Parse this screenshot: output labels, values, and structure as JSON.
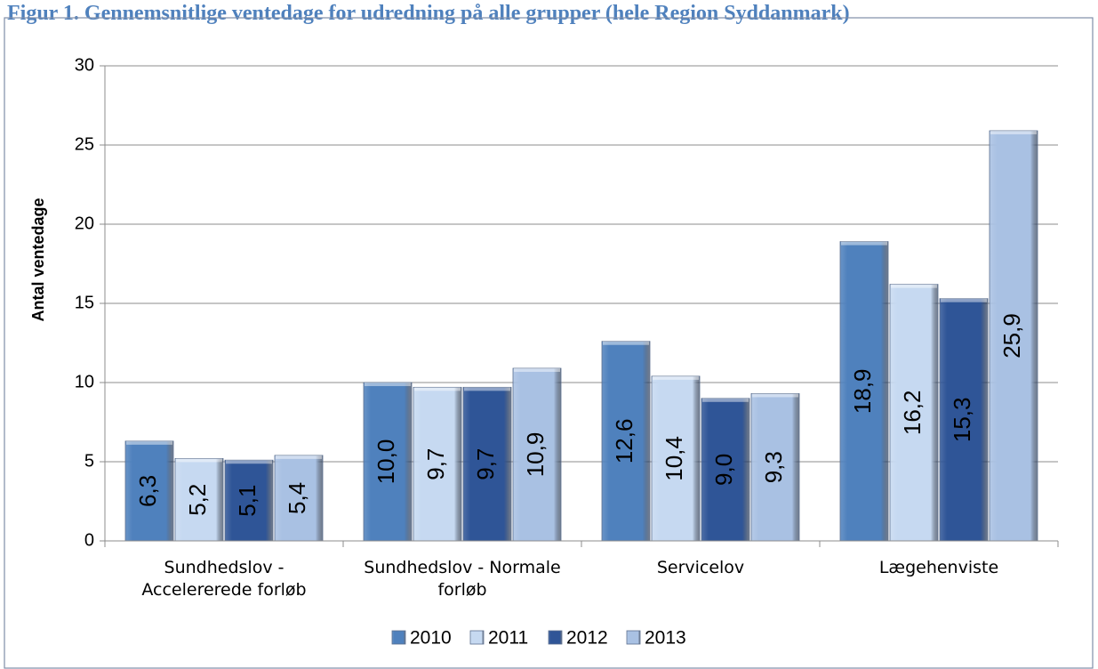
{
  "caption": "Figur 1. Gennemsnitlige ventedage for udredning på alle grupper (hele Region Syddanmark)",
  "chart_data": {
    "type": "bar",
    "title": "",
    "xlabel": "",
    "ylabel": "Antal ventedage",
    "ylim": [
      0,
      30
    ],
    "yticks": [
      "0",
      "5",
      "10",
      "15",
      "20",
      "25",
      "30"
    ],
    "grid": "horizontal",
    "legend_position": "bottom",
    "categories": [
      [
        "Sundhedslov -",
        "Accelererede forløb"
      ],
      [
        "Sundhedslov - Normale",
        "forløb"
      ],
      [
        "Servicelov"
      ],
      [
        "Lægehenviste"
      ]
    ],
    "series": [
      {
        "name": "2010",
        "values": [
          6.3,
          10.0,
          12.6,
          18.9
        ],
        "labels": [
          "6,3",
          "10,0",
          "12,6",
          "18,9"
        ],
        "color": "#4f81bd"
      },
      {
        "name": "2011",
        "values": [
          5.2,
          9.7,
          10.4,
          16.2
        ],
        "labels": [
          "5,2",
          "9,7",
          "10,4",
          "16,2"
        ],
        "color": "#c6d9f1"
      },
      {
        "name": "2012",
        "values": [
          5.1,
          9.7,
          9.0,
          15.3
        ],
        "labels": [
          "5,1",
          "9,7",
          "9,0",
          "15,3"
        ],
        "color": "#2f5597"
      },
      {
        "name": "2013",
        "values": [
          5.4,
          10.9,
          9.3,
          25.9
        ],
        "labels": [
          "5,4",
          "10,9",
          "9,3",
          "25,9"
        ],
        "color": "#a9c1e3"
      }
    ]
  }
}
